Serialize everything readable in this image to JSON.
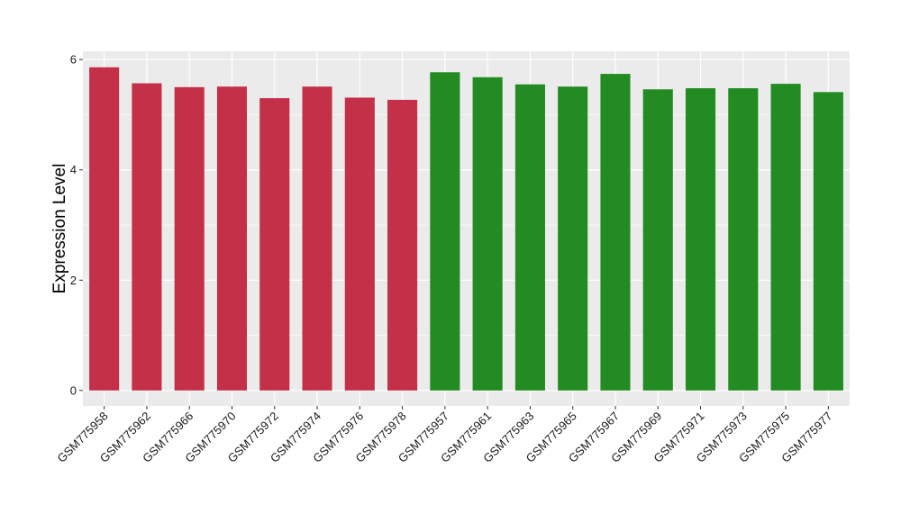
{
  "chart_data": {
    "type": "bar",
    "title": "",
    "xlabel": "",
    "ylabel": "Expression Level",
    "ylim": [
      -0.28,
      6.15
    ],
    "yticks": [
      0,
      2,
      4,
      6
    ],
    "grid": true,
    "categories": [
      "GSM775958",
      "GSM775962",
      "GSM775966",
      "GSM775970",
      "GSM775972",
      "GSM775974",
      "GSM775976",
      "GSM775978",
      "GSM775957",
      "GSM775961",
      "GSM775963",
      "GSM775965",
      "GSM775967",
      "GSM775969",
      "GSM775971",
      "GSM775973",
      "GSM775975",
      "GSM775977"
    ],
    "values": [
      5.86,
      5.57,
      5.5,
      5.51,
      5.3,
      5.51,
      5.31,
      5.27,
      5.77,
      5.68,
      5.55,
      5.51,
      5.74,
      5.46,
      5.48,
      5.48,
      5.56,
      5.41
    ],
    "bar_colors": [
      "#c33047",
      "#c33047",
      "#c33047",
      "#c33047",
      "#c33047",
      "#c33047",
      "#c33047",
      "#c33047",
      "#228b22",
      "#228b22",
      "#228b22",
      "#228b22",
      "#228b22",
      "#228b22",
      "#228b22",
      "#228b22",
      "#228b22",
      "#228b22"
    ],
    "panel_background": "#ebebeb",
    "grid_color": "#ffffff"
  }
}
